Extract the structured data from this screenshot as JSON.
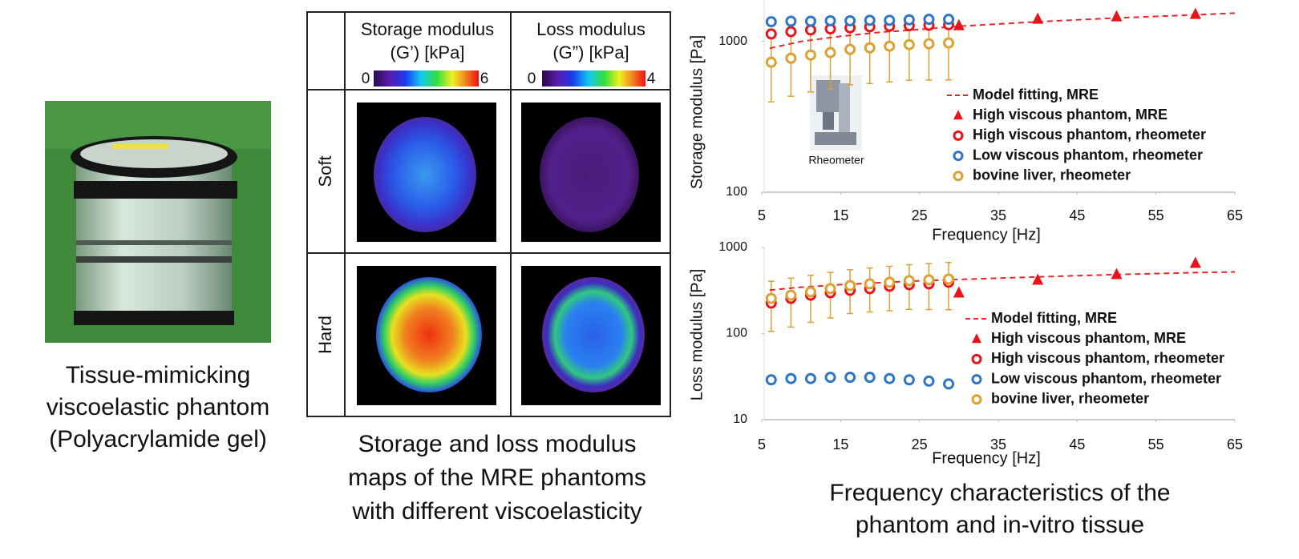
{
  "photo": {
    "caption": [
      "Tissue-mimicking",
      "viscoelastic phantom",
      "(Polyacrylamide gel)"
    ]
  },
  "maps": {
    "columns": [
      {
        "title": [
          "Storage modulus",
          "(G’) [kPa]"
        ],
        "colorbar": [
          0,
          6
        ]
      },
      {
        "title": [
          "Loss modulus",
          "(G”) [kPa]"
        ],
        "colorbar": [
          0,
          4
        ]
      }
    ],
    "rows": [
      "Soft",
      "Hard"
    ],
    "caption": [
      "Storage and loss modulus",
      "maps of the MRE phantoms",
      "with different viscoelasticity"
    ]
  },
  "chart_data": [
    {
      "type": "scatter",
      "y_label": "Storage modulus [Pa]",
      "x_label": "Frequency [Hz]",
      "annotation": "Rheometer",
      "xlim": [
        5,
        65
      ],
      "xticks": [
        5,
        15,
        25,
        35,
        45,
        55,
        65
      ],
      "ylim": [
        100,
        2000
      ],
      "yticks": [
        100,
        1000
      ],
      "log_y": true,
      "series": [
        {
          "name": "Model fitting, MRE",
          "color": "#e8262a",
          "marker": "dashed-line",
          "x": [
            6,
            10,
            15,
            20,
            25,
            30,
            40,
            50,
            60,
            65
          ],
          "values": [
            900,
            1000,
            1080,
            1150,
            1200,
            1260,
            1350,
            1430,
            1500,
            1540
          ]
        },
        {
          "name": "High viscous phantom, MRE",
          "color": "#e8141b",
          "marker": "triangle",
          "x": [
            30,
            40,
            50,
            60
          ],
          "values": [
            1277,
            1409,
            1461,
            1516
          ]
        },
        {
          "name": "High viscous phantom, rheometer",
          "color": "#e8141b",
          "marker": "circle",
          "x": [
            6.2,
            8.7,
            11.2,
            13.7,
            16.2,
            18.7,
            21.2,
            23.7,
            26.2,
            28.7
          ],
          "values": [
            1120,
            1160,
            1190,
            1210,
            1230,
            1250,
            1260,
            1270,
            1280,
            1290
          ]
        },
        {
          "name": "Low viscous phantom, rheometer",
          "color": "#2e75c6",
          "marker": "circle",
          "x": [
            6.2,
            8.7,
            11.2,
            13.7,
            16.2,
            18.7,
            21.2,
            23.7,
            26.2,
            28.7
          ],
          "values": [
            1350,
            1360,
            1360,
            1370,
            1370,
            1380,
            1380,
            1390,
            1400,
            1400
          ]
        },
        {
          "name": "bovine liver, rheometer",
          "color": "#dda033",
          "marker": "circle",
          "x": [
            6.2,
            8.7,
            11.2,
            13.7,
            16.2,
            18.7,
            21.2,
            23.7,
            26.2,
            28.7
          ],
          "values": [
            727,
            773,
            812,
            843,
            885,
            906,
            929,
            952,
            964,
            976
          ],
          "errors": [
            330,
            340,
            350,
            360,
            370,
            380,
            390,
            400,
            410,
            420
          ]
        }
      ]
    },
    {
      "type": "scatter",
      "y_label": "Loss modulus [Pa]",
      "x_label": "Frequency [Hz]",
      "xlim": [
        5,
        65
      ],
      "xticks": [
        5,
        15,
        25,
        35,
        45,
        55,
        65
      ],
      "ylim": [
        10,
        1000
      ],
      "yticks": [
        10,
        100,
        1000
      ],
      "log_y": true,
      "series": [
        {
          "name": "Model fitting, MRE",
          "color": "#e8262a",
          "marker": "dashed-line",
          "x": [
            6,
            10,
            15,
            20,
            25,
            30,
            40,
            50,
            60,
            65
          ],
          "values": [
            320,
            345,
            370,
            390,
            410,
            425,
            455,
            485,
            510,
            520
          ]
        },
        {
          "name": "High viscous phantom, MRE",
          "color": "#e8141b",
          "marker": "triangle",
          "x": [
            30,
            40,
            50,
            60
          ],
          "values": [
            298,
            420,
            488,
            658
          ]
        },
        {
          "name": "High viscous phantom, rheometer",
          "color": "#e8141b",
          "marker": "circle",
          "x": [
            6.2,
            8.7,
            11.2,
            13.7,
            16.2,
            18.7,
            21.2,
            23.7,
            26.2,
            28.7
          ],
          "values": [
            226,
            256,
            279,
            298,
            318,
            332,
            354,
            370,
            378,
            394
          ]
        },
        {
          "name": "Low viscous phantom, rheometer",
          "color": "#2e75c6",
          "marker": "circle",
          "x": [
            6.2,
            8.7,
            11.2,
            13.7,
            16.2,
            18.7,
            21.2,
            23.7,
            26.2,
            28.7
          ],
          "values": [
            29,
            30,
            30,
            31,
            31,
            31,
            30,
            29,
            28,
            26
          ]
        },
        {
          "name": "bovine liver, rheometer",
          "color": "#dda033",
          "marker": "circle",
          "x": [
            6.2,
            8.7,
            11.2,
            13.7,
            16.2,
            18.7,
            21.2,
            23.7,
            26.2,
            28.7
          ],
          "values": [
            256,
            279,
            305,
            332,
            361,
            378,
            394,
            411,
            420,
            429
          ],
          "errors": [
            150,
            160,
            170,
            180,
            190,
            200,
            210,
            220,
            230,
            240
          ]
        }
      ]
    }
  ],
  "charts_caption": [
    "Frequency characteristics of the",
    "phantom and in-vitro tissue"
  ]
}
